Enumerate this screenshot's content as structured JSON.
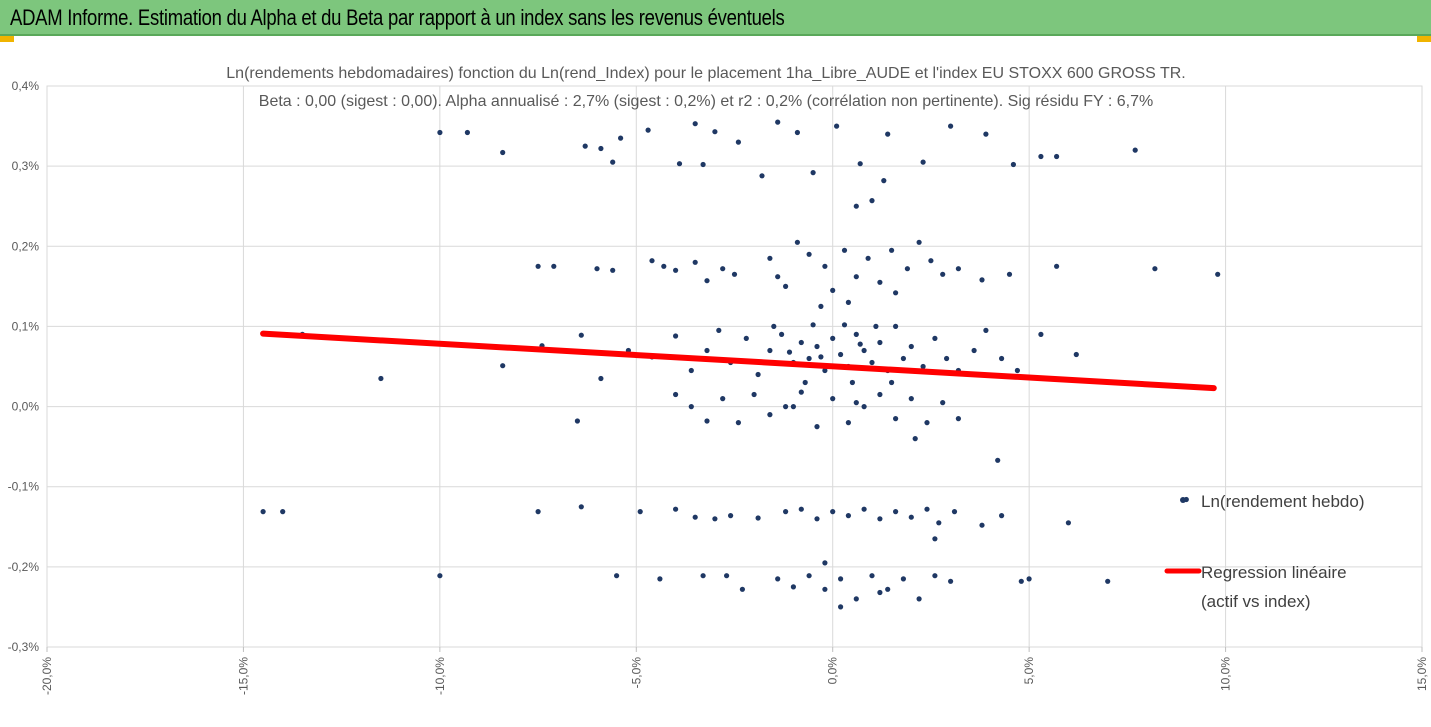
{
  "banner": {
    "title": "ADAM Informe. Estimation du Alpha et du Beta par rapport à un index sans les revenus éventuels"
  },
  "colors": {
    "banner": "#7dc67d",
    "points": "#1f3864",
    "regression": "#ff0000",
    "accent_corners": "#f0b400"
  },
  "chart_data": {
    "type": "scatter",
    "title_line1": "Ln(rendements hebdomadaires) fonction du Ln(rend_Index)  pour le placement 1ha_Libre_AUDE et l'index EU STOXX 600 GROSS TR.",
    "title_line2": "Beta : 0,00 (sigest : 0,00).  Alpha annualisé : 2,7% (sigest : 0,2%) et r2 : 0,2% (corrélation non pertinente). Sig résidu FY  : 6,7%",
    "xlabel": "",
    "ylabel": "",
    "xlim": [
      -20,
      15
    ],
    "ylim": [
      -0.3,
      0.4
    ],
    "x_ticks": [
      "-20,0%",
      "-15,0%",
      "-10,0%",
      "-5,0%",
      "0,0%",
      "5,0%",
      "10,0%",
      "15,0%"
    ],
    "x_tick_values": [
      -20,
      -15,
      -10,
      -5,
      0,
      5,
      10,
      15
    ],
    "y_ticks": [
      "0,4%",
      "0,3%",
      "0,2%",
      "0,1%",
      "0,0%",
      "-0,1%",
      "-0,2%",
      "-0,3%"
    ],
    "y_tick_values": [
      0.4,
      0.3,
      0.2,
      0.1,
      0.0,
      -0.1,
      -0.2,
      -0.3
    ],
    "grid": true,
    "legend_position": "right",
    "series": [
      {
        "name": "Ln(rendement hebdo)",
        "kind": "scatter",
        "points": [
          [
            -10.0,
            0.342
          ],
          [
            -9.3,
            0.342
          ],
          [
            -8.4,
            0.317
          ],
          [
            -6.3,
            0.325
          ],
          [
            -5.9,
            0.322
          ],
          [
            -5.6,
            0.305
          ],
          [
            -5.4,
            0.335
          ],
          [
            -4.7,
            0.345
          ],
          [
            -3.9,
            0.303
          ],
          [
            -3.5,
            0.353
          ],
          [
            -3.3,
            0.302
          ],
          [
            -3.0,
            0.343
          ],
          [
            -2.4,
            0.33
          ],
          [
            -1.4,
            0.355
          ],
          [
            -0.9,
            0.342
          ],
          [
            0.1,
            0.35
          ],
          [
            0.7,
            0.303
          ],
          [
            1.4,
            0.34
          ],
          [
            2.3,
            0.305
          ],
          [
            3.0,
            0.35
          ],
          [
            3.9,
            0.34
          ],
          [
            4.6,
            0.302
          ],
          [
            5.3,
            0.312
          ],
          [
            5.7,
            0.312
          ],
          [
            7.7,
            0.32
          ],
          [
            0.6,
            0.25
          ],
          [
            1.0,
            0.257
          ],
          [
            1.3,
            0.282
          ],
          [
            -1.8,
            0.288
          ],
          [
            -0.5,
            0.292
          ],
          [
            -7.5,
            0.175
          ],
          [
            -7.1,
            0.175
          ],
          [
            -6.0,
            0.172
          ],
          [
            -5.6,
            0.17
          ],
          [
            -4.6,
            0.182
          ],
          [
            -4.3,
            0.175
          ],
          [
            -4.0,
            0.17
          ],
          [
            -3.5,
            0.18
          ],
          [
            -3.2,
            0.157
          ],
          [
            -2.8,
            0.172
          ],
          [
            -2.5,
            0.165
          ],
          [
            -1.6,
            0.185
          ],
          [
            -1.4,
            0.162
          ],
          [
            -0.9,
            0.205
          ],
          [
            -0.6,
            0.19
          ],
          [
            -0.2,
            0.175
          ],
          [
            0.3,
            0.195
          ],
          [
            0.6,
            0.162
          ],
          [
            0.9,
            0.185
          ],
          [
            1.2,
            0.155
          ],
          [
            1.5,
            0.195
          ],
          [
            1.9,
            0.172
          ],
          [
            2.2,
            0.205
          ],
          [
            2.5,
            0.182
          ],
          [
            2.8,
            0.165
          ],
          [
            3.2,
            0.172
          ],
          [
            3.8,
            0.158
          ],
          [
            4.5,
            0.165
          ],
          [
            5.7,
            0.175
          ],
          [
            8.2,
            0.172
          ],
          [
            9.8,
            0.165
          ],
          [
            -0.3,
            0.125
          ],
          [
            0.4,
            0.13
          ],
          [
            1.6,
            0.142
          ],
          [
            -1.2,
            0.15
          ],
          [
            0.0,
            0.145
          ],
          [
            -14.2,
            0.09
          ],
          [
            -13.5,
            0.09
          ],
          [
            -11.5,
            0.035
          ],
          [
            -8.4,
            0.051
          ],
          [
            -7.4,
            0.076
          ],
          [
            -6.4,
            0.089
          ],
          [
            -5.9,
            0.035
          ],
          [
            -5.2,
            0.07
          ],
          [
            -4.6,
            0.062
          ],
          [
            -4.0,
            0.088
          ],
          [
            -3.6,
            0.045
          ],
          [
            -3.2,
            0.07
          ],
          [
            -2.9,
            0.095
          ],
          [
            -2.6,
            0.055
          ],
          [
            -2.2,
            0.085
          ],
          [
            -1.9,
            0.04
          ],
          [
            -1.6,
            0.07
          ],
          [
            -1.3,
            0.09
          ],
          [
            -1.0,
            0.055
          ],
          [
            -0.8,
            0.08
          ],
          [
            -0.6,
            0.06
          ],
          [
            -0.4,
            0.075
          ],
          [
            -0.2,
            0.045
          ],
          [
            0.0,
            0.085
          ],
          [
            0.2,
            0.065
          ],
          [
            0.4,
            0.05
          ],
          [
            0.6,
            0.09
          ],
          [
            0.8,
            0.07
          ],
          [
            1.0,
            0.055
          ],
          [
            1.2,
            0.08
          ],
          [
            1.4,
            0.045
          ],
          [
            1.6,
            0.1
          ],
          [
            1.8,
            0.06
          ],
          [
            2.0,
            0.075
          ],
          [
            2.3,
            0.05
          ],
          [
            2.6,
            0.085
          ],
          [
            2.9,
            0.06
          ],
          [
            3.2,
            0.045
          ],
          [
            3.6,
            0.07
          ],
          [
            3.9,
            0.095
          ],
          [
            4.3,
            0.06
          ],
          [
            4.7,
            0.045
          ],
          [
            5.3,
            0.09
          ],
          [
            6.2,
            0.065
          ],
          [
            -0.5,
            0.102
          ],
          [
            0.3,
            0.102
          ],
          [
            1.1,
            0.1
          ],
          [
            -1.5,
            0.1
          ],
          [
            -0.7,
            0.03
          ],
          [
            0.5,
            0.03
          ],
          [
            1.5,
            0.03
          ],
          [
            -0.3,
            0.062
          ],
          [
            0.7,
            0.078
          ],
          [
            -1.1,
            0.068
          ],
          [
            -4.0,
            0.015
          ],
          [
            -3.6,
            0.0
          ],
          [
            -3.2,
            -0.018
          ],
          [
            -2.8,
            0.01
          ],
          [
            -2.4,
            -0.02
          ],
          [
            -2.0,
            0.015
          ],
          [
            -1.6,
            -0.01
          ],
          [
            -1.2,
            0.0
          ],
          [
            -0.8,
            0.018
          ],
          [
            -0.4,
            -0.025
          ],
          [
            0.0,
            0.01
          ],
          [
            0.4,
            -0.02
          ],
          [
            0.8,
            0.0
          ],
          [
            1.2,
            0.015
          ],
          [
            1.6,
            -0.015
          ],
          [
            2.0,
            0.01
          ],
          [
            2.4,
            -0.02
          ],
          [
            2.8,
            0.005
          ],
          [
            3.2,
            -0.015
          ],
          [
            -6.5,
            -0.018
          ],
          [
            2.1,
            -0.04
          ],
          [
            4.2,
            -0.067
          ],
          [
            -1.0,
            0.0
          ],
          [
            0.6,
            0.005
          ],
          [
            -14.5,
            -0.131
          ],
          [
            -14.0,
            -0.131
          ],
          [
            -7.5,
            -0.131
          ],
          [
            -6.4,
            -0.125
          ],
          [
            -4.9,
            -0.131
          ],
          [
            -4.0,
            -0.128
          ],
          [
            -3.5,
            -0.138
          ],
          [
            -3.0,
            -0.14
          ],
          [
            -2.6,
            -0.136
          ],
          [
            -1.9,
            -0.139
          ],
          [
            -1.2,
            -0.131
          ],
          [
            -0.8,
            -0.128
          ],
          [
            -0.4,
            -0.14
          ],
          [
            0.0,
            -0.131
          ],
          [
            0.4,
            -0.136
          ],
          [
            0.8,
            -0.128
          ],
          [
            1.2,
            -0.14
          ],
          [
            1.6,
            -0.131
          ],
          [
            2.0,
            -0.138
          ],
          [
            2.4,
            -0.128
          ],
          [
            2.7,
            -0.145
          ],
          [
            3.1,
            -0.131
          ],
          [
            3.8,
            -0.148
          ],
          [
            4.3,
            -0.136
          ],
          [
            6.0,
            -0.145
          ],
          [
            9.0,
            -0.116
          ],
          [
            2.6,
            -0.165
          ],
          [
            -10.0,
            -0.211
          ],
          [
            -5.5,
            -0.211
          ],
          [
            -4.4,
            -0.215
          ],
          [
            -3.3,
            -0.211
          ],
          [
            -2.7,
            -0.211
          ],
          [
            -2.3,
            -0.228
          ],
          [
            -1.4,
            -0.215
          ],
          [
            -1.0,
            -0.225
          ],
          [
            -0.6,
            -0.211
          ],
          [
            -0.2,
            -0.228
          ],
          [
            0.2,
            -0.215
          ],
          [
            0.6,
            -0.24
          ],
          [
            1.0,
            -0.211
          ],
          [
            1.4,
            -0.228
          ],
          [
            1.8,
            -0.215
          ],
          [
            2.2,
            -0.24
          ],
          [
            2.6,
            -0.211
          ],
          [
            3.0,
            -0.218
          ],
          [
            4.8,
            -0.218
          ],
          [
            5.0,
            -0.215
          ],
          [
            7.0,
            -0.218
          ],
          [
            0.2,
            -0.25
          ],
          [
            -0.2,
            -0.195
          ],
          [
            1.2,
            -0.232
          ]
        ]
      },
      {
        "name": "Regression linéaire (actif vs index)",
        "name_line1": "Regression linéaire",
        "name_line2": "(actif vs index)",
        "kind": "line",
        "points": [
          [
            -14.5,
            0.091
          ],
          [
            9.7,
            0.023
          ]
        ]
      }
    ]
  }
}
